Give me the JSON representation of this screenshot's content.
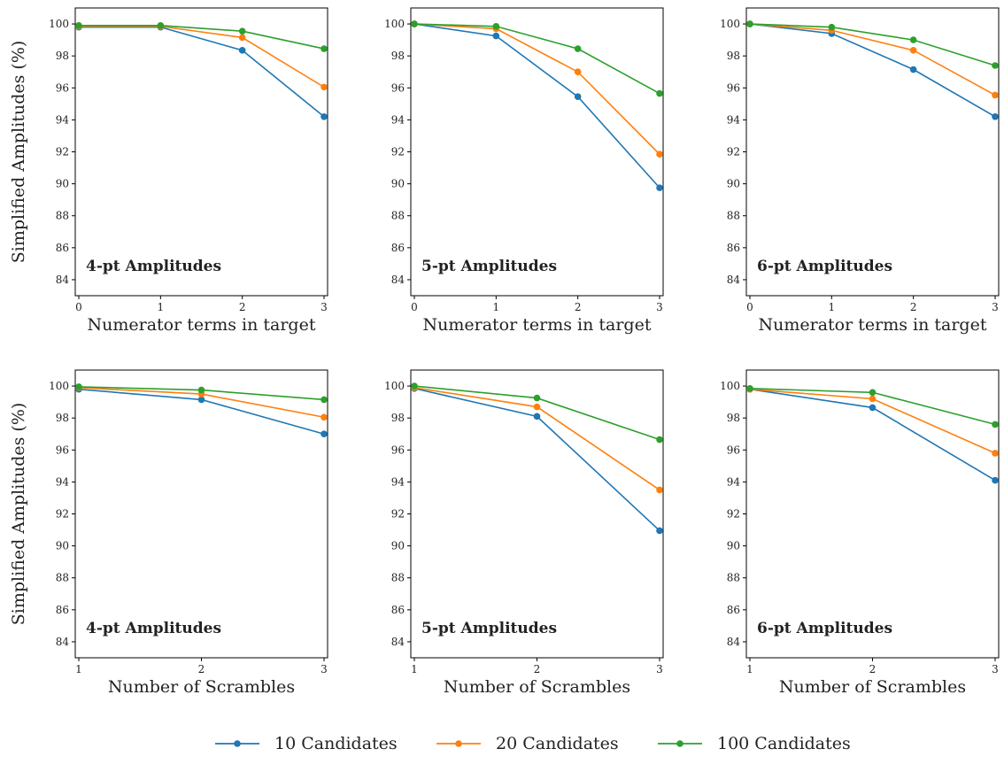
{
  "colors": {
    "10 Candidates": "#1f77b4",
    "20 Candidates": "#ff7f0e",
    "100 Candidates": "#2ca02c"
  },
  "legend": {
    "placement": "bottom-center",
    "items": [
      "10 Candidates",
      "20 Candidates",
      "100 Candidates"
    ]
  },
  "chart_data": [
    {
      "type": "line",
      "title": "4-pt Amplitudes",
      "xlabel": "Numerator terms in target",
      "ylabel": "Simplified Amplitudes (%)",
      "x": [
        0,
        1,
        2,
        3
      ],
      "xticks": [
        "0",
        "1",
        "2",
        "3"
      ],
      "ylim": [
        83,
        101
      ],
      "yticks": [
        "84",
        "86",
        "88",
        "90",
        "92",
        "94",
        "96",
        "98",
        "100"
      ],
      "series": [
        {
          "name": "10 Candidates",
          "values": [
            99.8,
            99.8,
            98.35,
            94.2
          ]
        },
        {
          "name": "20 Candidates",
          "values": [
            99.85,
            99.85,
            99.15,
            96.05
          ]
        },
        {
          "name": "100 Candidates",
          "values": [
            99.9,
            99.9,
            99.55,
            98.45
          ]
        }
      ]
    },
    {
      "type": "line",
      "title": "5-pt Amplitudes",
      "xlabel": "Numerator terms in target",
      "ylabel": "",
      "x": [
        0,
        1,
        2,
        3
      ],
      "xticks": [
        "0",
        "1",
        "2",
        "3"
      ],
      "ylim": [
        83,
        101
      ],
      "yticks": [
        "84",
        "86",
        "88",
        "90",
        "92",
        "94",
        "96",
        "98",
        "100"
      ],
      "series": [
        {
          "name": "10 Candidates",
          "values": [
            100,
            99.25,
            95.45,
            89.75
          ]
        },
        {
          "name": "20 Candidates",
          "values": [
            100,
            99.7,
            97.0,
            91.85
          ]
        },
        {
          "name": "100 Candidates",
          "values": [
            100,
            99.85,
            98.45,
            95.65
          ]
        }
      ]
    },
    {
      "type": "line",
      "title": "6-pt Amplitudes",
      "xlabel": "Numerator terms in target",
      "ylabel": "",
      "x": [
        0,
        1,
        2,
        3
      ],
      "xticks": [
        "0",
        "1",
        "2",
        "3"
      ],
      "ylim": [
        83,
        101
      ],
      "yticks": [
        "84",
        "86",
        "88",
        "90",
        "92",
        "94",
        "96",
        "98",
        "100"
      ],
      "series": [
        {
          "name": "10 Candidates",
          "values": [
            100,
            99.4,
            97.15,
            94.2
          ]
        },
        {
          "name": "20 Candidates",
          "values": [
            100,
            99.6,
            98.35,
            95.55
          ]
        },
        {
          "name": "100 Candidates",
          "values": [
            100,
            99.8,
            99.0,
            97.4
          ]
        }
      ]
    },
    {
      "type": "line",
      "title": "4-pt Amplitudes",
      "xlabel": "Number of Scrambles",
      "ylabel": "Simplified Amplitudes (%)",
      "x": [
        1,
        2,
        3
      ],
      "xticks": [
        "1",
        "2",
        "3"
      ],
      "ylim": [
        83,
        101
      ],
      "yticks": [
        "84",
        "86",
        "88",
        "90",
        "92",
        "94",
        "96",
        "98",
        "100"
      ],
      "series": [
        {
          "name": "10 Candidates",
          "values": [
            99.8,
            99.15,
            97.0
          ]
        },
        {
          "name": "20 Candidates",
          "values": [
            99.9,
            99.5,
            98.05
          ]
        },
        {
          "name": "100 Candidates",
          "values": [
            99.95,
            99.75,
            99.15
          ]
        }
      ]
    },
    {
      "type": "line",
      "title": "5-pt Amplitudes",
      "xlabel": "Number of Scrambles",
      "ylabel": "",
      "x": [
        1,
        2,
        3
      ],
      "xticks": [
        "1",
        "2",
        "3"
      ],
      "ylim": [
        83,
        101
      ],
      "yticks": [
        "84",
        "86",
        "88",
        "90",
        "92",
        "94",
        "96",
        "98",
        "100"
      ],
      "series": [
        {
          "name": "10 Candidates",
          "values": [
            99.85,
            98.1,
            90.95
          ]
        },
        {
          "name": "20 Candidates",
          "values": [
            99.9,
            98.7,
            93.5
          ]
        },
        {
          "name": "100 Candidates",
          "values": [
            100,
            99.25,
            96.65
          ]
        }
      ]
    },
    {
      "type": "line",
      "title": "6-pt Amplitudes",
      "xlabel": "Number of Scrambles",
      "ylabel": "",
      "x": [
        1,
        2,
        3
      ],
      "xticks": [
        "1",
        "2",
        "3"
      ],
      "ylim": [
        83,
        101
      ],
      "yticks": [
        "84",
        "86",
        "88",
        "90",
        "92",
        "94",
        "96",
        "98",
        "100"
      ],
      "series": [
        {
          "name": "10 Candidates",
          "values": [
            99.8,
            98.65,
            94.1
          ]
        },
        {
          "name": "20 Candidates",
          "values": [
            99.8,
            99.2,
            95.8
          ]
        },
        {
          "name": "100 Candidates",
          "values": [
            99.85,
            99.6,
            97.6
          ]
        }
      ]
    }
  ]
}
